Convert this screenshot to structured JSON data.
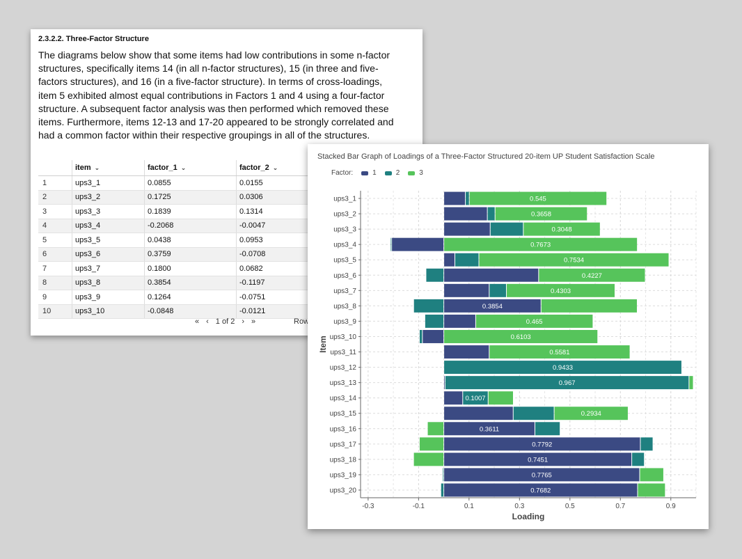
{
  "document": {
    "section_title": "2.3.2.2. Three-Factor Structure",
    "paragraph": "The diagrams below show that some items had low contributions in some n-factor structures, specifically items 14 (in all n-factor structures), 15 (in three and five-factors structures), and 16 (in a five-factor structure). In terms of cross-loadings, item 5 exhibited almost equal contributions in Factors 1 and 4 using a four-factor structure. A subsequent factor analysis was then performed which removed these items. Furthermore, items 12-13 and 17-20 appeared to be strongly correlated and had a common factor within their respective groupings in all of the structures."
  },
  "table": {
    "columns": [
      "item",
      "factor_1",
      "factor_2"
    ],
    "rows": [
      {
        "idx": "1",
        "item": "ups3_1",
        "f1": "0.0855",
        "f2": "0.0155"
      },
      {
        "idx": "2",
        "item": "ups3_2",
        "f1": "0.1725",
        "f2": "0.0306"
      },
      {
        "idx": "3",
        "item": "ups3_3",
        "f1": "0.1839",
        "f2": "0.1314"
      },
      {
        "idx": "4",
        "item": "ups3_4",
        "f1": "-0.2068",
        "f2": "-0.0047"
      },
      {
        "idx": "5",
        "item": "ups3_5",
        "f1": "0.0438",
        "f2": "0.0953"
      },
      {
        "idx": "6",
        "item": "ups3_6",
        "f1": "0.3759",
        "f2": "-0.0708"
      },
      {
        "idx": "7",
        "item": "ups3_7",
        "f1": "0.1800",
        "f2": "0.0682"
      },
      {
        "idx": "8",
        "item": "ups3_8",
        "f1": "0.3854",
        "f2": "-0.1197"
      },
      {
        "idx": "9",
        "item": "ups3_9",
        "f1": "0.1264",
        "f2": "-0.0751"
      },
      {
        "idx": "10",
        "item": "ups3_10",
        "f1": "-0.0848",
        "f2": "-0.0121"
      }
    ],
    "pager": {
      "first": "«",
      "prev": "‹",
      "page": "1 of 2",
      "next": "›",
      "last": "»"
    },
    "rows_label": "Row"
  },
  "chart_data": {
    "type": "bar",
    "title": "Stacked Bar Graph of Loadings of a Three-Factor Structured 20-item UP Student Satisfaction Scale",
    "xlabel": "Loading",
    "ylabel": "Item",
    "legend_title": "Factor:",
    "xlim": [
      -0.33,
      1.0
    ],
    "x_ticks": [
      "-0.3",
      "-0.1",
      "0.1",
      "0.3",
      "0.5",
      "0.7",
      "0.9"
    ],
    "grid": true,
    "categories": [
      "ups3_1",
      "ups3_2",
      "ups3_3",
      "ups3_4",
      "ups3_5",
      "ups3_6",
      "ups3_7",
      "ups3_8",
      "ups3_9",
      "ups3_10",
      "ups3_11",
      "ups3_12",
      "ups3_13",
      "ups3_14",
      "ups3_15",
      "ups3_16",
      "ups3_17",
      "ups3_18",
      "ups3_19",
      "ups3_20"
    ],
    "series": [
      {
        "name": "1",
        "color": "#3b4a83",
        "values": [
          0.0855,
          0.1725,
          0.1839,
          -0.2068,
          0.0438,
          0.3759,
          0.18,
          0.3854,
          0.1264,
          -0.0848,
          0.18,
          0.0,
          0.005,
          0.075,
          0.275,
          0.3611,
          0.7792,
          0.7451,
          0.7765,
          0.7682
        ]
      },
      {
        "name": "2",
        "color": "#1f8080",
        "values": [
          0.0155,
          0.0306,
          0.1314,
          -0.0047,
          0.0953,
          -0.0708,
          0.0682,
          -0.1197,
          -0.0751,
          -0.0121,
          0.0,
          0.9433,
          0.967,
          0.1007,
          0.1624,
          0.1,
          0.05,
          0.05,
          -0.005,
          -0.012
        ]
      },
      {
        "name": "3",
        "color": "#56c45b",
        "values": [
          0.545,
          0.3658,
          0.3048,
          0.7673,
          0.7534,
          0.4227,
          0.4303,
          0.3814,
          0.465,
          0.6103,
          0.5581,
          0.0,
          0.017,
          0.1,
          0.2934,
          -0.065,
          -0.097,
          -0.12,
          0.095,
          0.11
        ]
      }
    ],
    "labels": [
      {
        "series": 2,
        "text": "0.545"
      },
      {
        "series": 2,
        "text": "0.3658"
      },
      {
        "series": 2,
        "text": "0.3048"
      },
      {
        "series": 2,
        "text": "0.7673"
      },
      {
        "series": 2,
        "text": "0.7534"
      },
      {
        "series": 2,
        "text": "0.4227"
      },
      {
        "series": 2,
        "text": "0.4303"
      },
      {
        "series": 0,
        "text": "0.3854"
      },
      {
        "series": 2,
        "text": "0.465"
      },
      {
        "series": 2,
        "text": "0.6103"
      },
      {
        "series": 2,
        "text": "0.5581"
      },
      {
        "series": 1,
        "text": "0.9433"
      },
      {
        "series": 1,
        "text": "0.967"
      },
      {
        "series": 1,
        "text": "0.1007"
      },
      {
        "series": 2,
        "text": "0.2934"
      },
      {
        "series": 0,
        "text": "0.3611"
      },
      {
        "series": 0,
        "text": "0.7792"
      },
      {
        "series": 0,
        "text": "0.7451"
      },
      {
        "series": 0,
        "text": "0.7765"
      },
      {
        "series": 0,
        "text": "0.7682"
      }
    ]
  }
}
